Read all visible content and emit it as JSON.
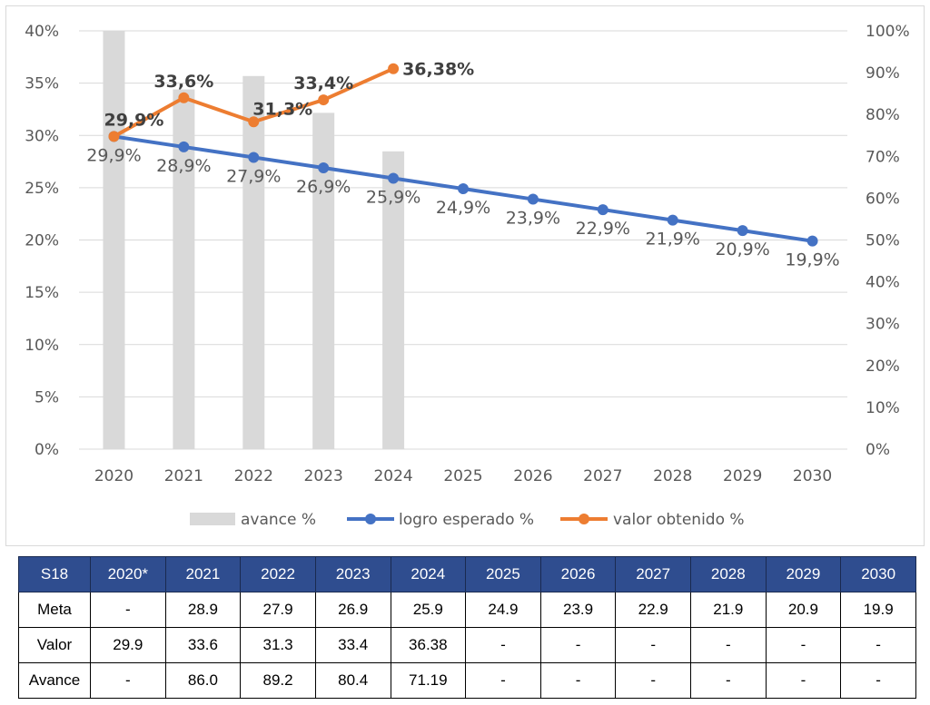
{
  "chart_data": {
    "type": "bar+line",
    "categories": [
      "2020",
      "2021",
      "2022",
      "2023",
      "2024",
      "2025",
      "2026",
      "2027",
      "2028",
      "2029",
      "2030"
    ],
    "left_axis": {
      "min": 0,
      "max": 40,
      "ticks": [
        "0%",
        "5%",
        "10%",
        "15%",
        "20%",
        "25%",
        "30%",
        "35%",
        "40%"
      ]
    },
    "right_axis": {
      "min": 0,
      "max": 100,
      "ticks": [
        "0%",
        "10%",
        "20%",
        "30%",
        "40%",
        "50%",
        "60%",
        "70%",
        "80%",
        "90%",
        "100%"
      ]
    },
    "grid": true,
    "legend_position": "bottom",
    "series": [
      {
        "name": "avance %",
        "kind": "bar",
        "axis": "right",
        "color": "#d9d9d9",
        "values": [
          100,
          86.0,
          89.2,
          80.4,
          71.19,
          null,
          null,
          null,
          null,
          null,
          null
        ]
      },
      {
        "name": "logro esperado %",
        "kind": "line",
        "axis": "left",
        "color": "#4472c4",
        "values": [
          29.9,
          28.9,
          27.9,
          26.9,
          25.9,
          24.9,
          23.9,
          22.9,
          21.9,
          20.9,
          19.9
        ],
        "labels": [
          "29,9%",
          "28,9%",
          "27,9%",
          "26,9%",
          "25,9%",
          "24,9%",
          "23,9%",
          "22,9%",
          "21,9%",
          "20,9%",
          "19,9%"
        ]
      },
      {
        "name": "valor obtenido %",
        "kind": "line",
        "axis": "left",
        "color": "#ed7d31",
        "values": [
          29.9,
          33.6,
          31.3,
          33.4,
          36.38,
          null,
          null,
          null,
          null,
          null,
          null
        ],
        "labels": [
          "29,9%",
          "33,6%",
          "31,3%",
          "33,4%",
          "36,38%"
        ]
      }
    ]
  },
  "table": {
    "headers": [
      "S18",
      "2020*",
      "2021",
      "2022",
      "2023",
      "2024",
      "2025",
      "2026",
      "2027",
      "2028",
      "2029",
      "2030"
    ],
    "rows": [
      [
        "Meta",
        "-",
        "28.9",
        "27.9",
        "26.9",
        "25.9",
        "24.9",
        "23.9",
        "22.9",
        "21.9",
        "20.9",
        "19.9"
      ],
      [
        "Valor",
        "29.9",
        "33.6",
        "31.3",
        "33.4",
        "36.38",
        "-",
        "-",
        "-",
        "-",
        "-",
        "-"
      ],
      [
        "Avance",
        "-",
        "86.0",
        "89.2",
        "80.4",
        "71.19",
        "-",
        "-",
        "-",
        "-",
        "-",
        "-"
      ]
    ]
  }
}
